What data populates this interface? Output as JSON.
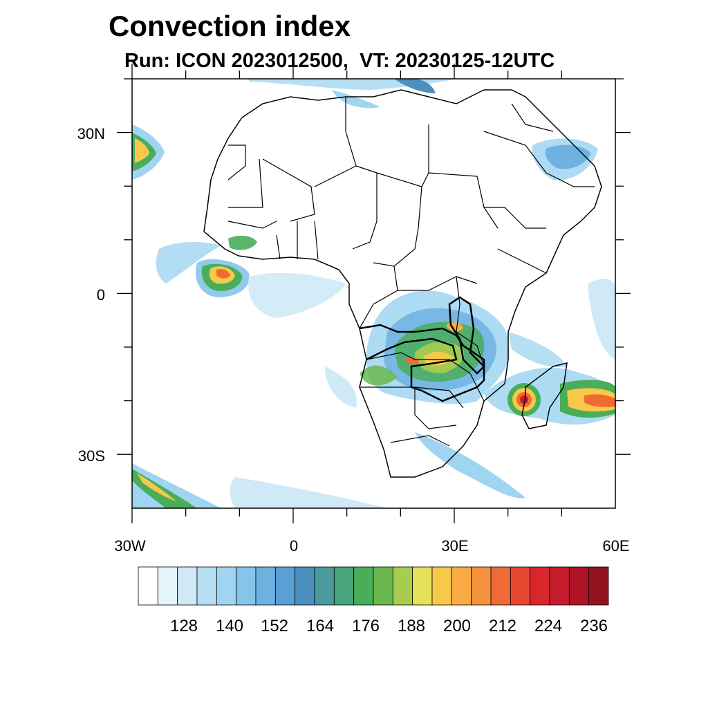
{
  "title": "Convection index",
  "subtitle": "Run: ICON 2023012500,  VT: 20230125-12UTC",
  "map": {
    "x_labels": [
      "30W",
      "0",
      "30E",
      "60E"
    ],
    "y_labels": [
      "30N",
      "0",
      "30S"
    ]
  },
  "colorbar": {
    "labels": [
      "128",
      "140",
      "152",
      "164",
      "176",
      "188",
      "200",
      "212",
      "224",
      "236"
    ],
    "colors": [
      "#ffffff",
      "#e6f4fb",
      "#cfe9f7",
      "#b7dff4",
      "#9fd5f1",
      "#86c4ea",
      "#6fb1e1",
      "#5a9fd6",
      "#4d8fbf",
      "#4a9a9e",
      "#48a47d",
      "#49ad5a",
      "#6ab84d",
      "#a8cd4e",
      "#e6e15a",
      "#f6c94a",
      "#f8ac43",
      "#f5923d",
      "#ef6a34",
      "#e6472e",
      "#d9262c",
      "#c51b2b",
      "#ae1425",
      "#94121f"
    ]
  }
}
